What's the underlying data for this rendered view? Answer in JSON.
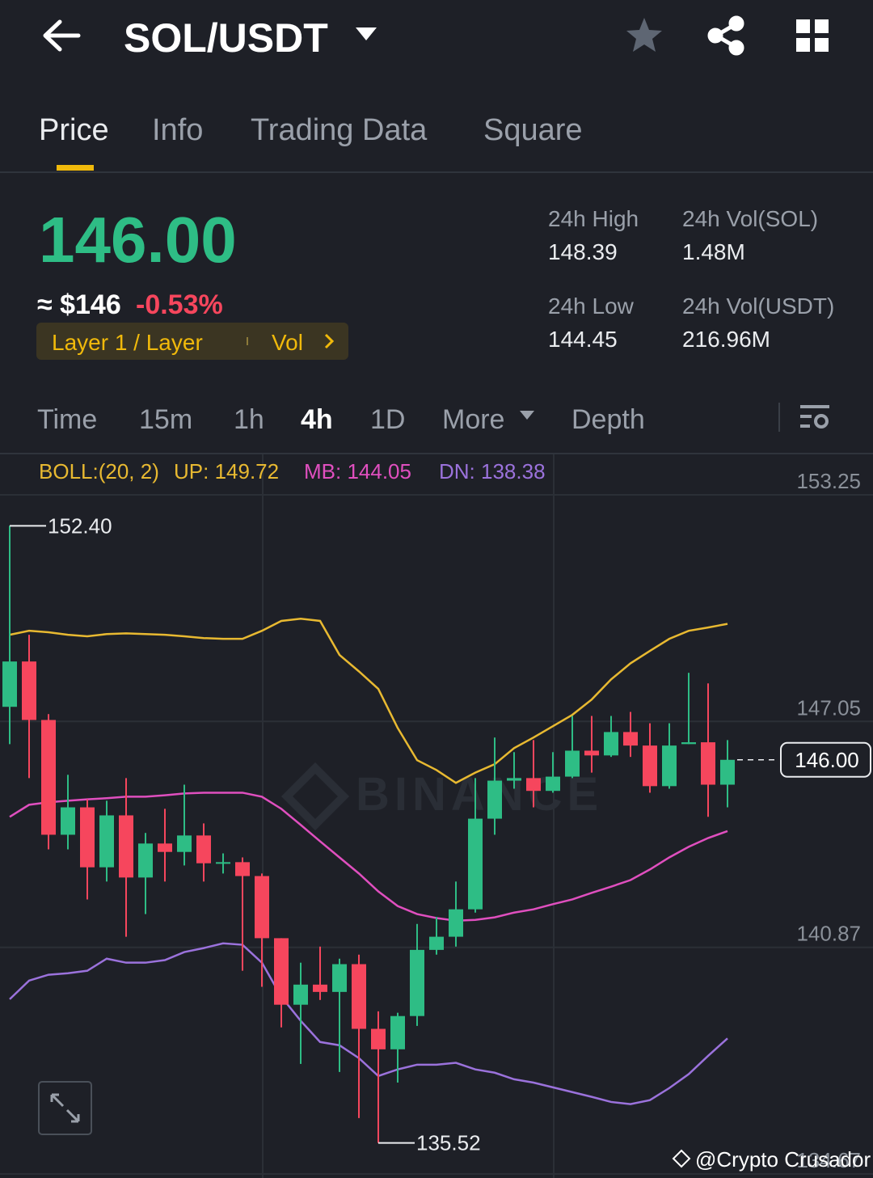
{
  "header": {
    "pair": "SOL/USDT"
  },
  "tabs": [
    "Price",
    "Info",
    "Trading Data",
    "Square"
  ],
  "price": {
    "last": "146.00",
    "fiat": "≈ $146",
    "change": "-0.53%",
    "tag": "Layer 1 / Layer",
    "tag_more": "Vol"
  },
  "stats": [
    {
      "label": "24h High",
      "value": "148.39"
    },
    {
      "label": "24h Vol(SOL)",
      "value": "1.48M"
    },
    {
      "label": "24h Low",
      "value": "144.45"
    },
    {
      "label": "24h Vol(USDT)",
      "value": "216.96M"
    }
  ],
  "intervals": [
    "Time",
    "15m",
    "1h",
    "4h",
    "1D",
    "More",
    "Depth"
  ],
  "chart_data": {
    "type": "candlestick",
    "indicator": "BOLL:(20, 2)",
    "up_color": "#2ebd85",
    "down_color": "#f6465d",
    "open": [
      147.45,
      148.69,
      147.09,
      143.95,
      144.7,
      143.06,
      144.48,
      142.78,
      143.71,
      143.48,
      143.93,
      143.17,
      143.2,
      142.82,
      141.12,
      139.3,
      139.85,
      139.65,
      140.41,
      138.64,
      138.08,
      138.99,
      140.8,
      141.16,
      141.91,
      144.39,
      145.43,
      145.5,
      145.15,
      145.54,
      146.25,
      146.12,
      146.76,
      146.39,
      145.28,
      146.43,
      146.48,
      145.32
    ],
    "high": [
      152.4,
      149.42,
      147.25,
      145.59,
      144.92,
      144.88,
      145.5,
      144.0,
      144.66,
      145.32,
      144.26,
      143.44,
      143.33,
      142.89,
      141.12,
      140.45,
      140.89,
      140.56,
      140.67,
      139.12,
      139.08,
      141.51,
      141.7,
      142.67,
      145.5,
      146.61,
      146.21,
      146.54,
      146.21,
      147.2,
      147.2,
      147.2,
      147.31,
      147.0,
      147.0,
      148.38,
      148.09,
      146.54
    ],
    "low": [
      146.43,
      145.5,
      143.55,
      143.55,
      142.18,
      142.67,
      141.16,
      141.78,
      142.67,
      143.11,
      142.67,
      142.89,
      140.23,
      139.79,
      138.68,
      137.68,
      139.43,
      137.46,
      136.2,
      135.52,
      137.17,
      138.72,
      140.67,
      140.89,
      141.82,
      143.95,
      145.21,
      144.7,
      145.1,
      145.5,
      145.65,
      146.08,
      146.08,
      145.1,
      145.21,
      146.43,
      144.44,
      144.7
    ],
    "close": [
      148.69,
      147.09,
      143.95,
      144.7,
      143.06,
      144.48,
      142.78,
      143.71,
      143.48,
      143.93,
      143.17,
      143.2,
      142.82,
      141.12,
      139.3,
      139.85,
      139.65,
      140.41,
      138.64,
      138.08,
      138.99,
      140.8,
      141.16,
      141.91,
      144.39,
      145.43,
      145.5,
      145.15,
      145.54,
      146.25,
      146.12,
      146.76,
      146.39,
      145.28,
      146.39,
      146.48,
      145.32,
      146.0
    ],
    "series": [
      {
        "name": "UP: 149.72",
        "color": "#e8b931",
        "values": [
          149.42,
          149.53,
          149.49,
          149.42,
          149.38,
          149.44,
          149.46,
          149.44,
          149.42,
          149.38,
          149.33,
          149.31,
          149.31,
          149.53,
          149.8,
          149.86,
          149.8,
          148.87,
          148.42,
          147.94,
          146.87,
          145.99,
          145.72,
          145.37,
          145.65,
          145.88,
          146.32,
          146.61,
          146.92,
          147.23,
          147.65,
          148.2,
          148.64,
          148.98,
          149.31,
          149.53,
          149.62,
          149.72
        ]
      },
      {
        "name": "MB: 144.05",
        "color": "#e04fbf",
        "values": [
          144.44,
          144.77,
          144.84,
          144.88,
          144.92,
          144.95,
          144.99,
          144.99,
          145.03,
          145.08,
          145.1,
          145.1,
          145.1,
          144.99,
          144.66,
          144.22,
          143.77,
          143.33,
          142.89,
          142.4,
          142.0,
          141.78,
          141.67,
          141.6,
          141.62,
          141.69,
          141.82,
          141.91,
          142.05,
          142.18,
          142.36,
          142.53,
          142.71,
          143.0,
          143.33,
          143.62,
          143.86,
          144.05
        ]
      },
      {
        "name": "DN: 138.38",
        "color": "#9b72dc",
        "values": [
          139.45,
          139.96,
          140.12,
          140.16,
          140.23,
          140.56,
          140.45,
          140.45,
          140.52,
          140.74,
          140.85,
          140.98,
          140.94,
          140.45,
          139.52,
          138.86,
          138.28,
          138.19,
          137.84,
          137.35,
          137.53,
          137.66,
          137.66,
          137.71,
          137.53,
          137.44,
          137.26,
          137.17,
          137.04,
          136.91,
          136.78,
          136.64,
          136.58,
          136.69,
          137.02,
          137.4,
          137.9,
          138.38
        ]
      }
    ],
    "ylim": [
      134.67,
      153.25
    ],
    "yticks": [
      153.25,
      147.05,
      140.87,
      134.67
    ],
    "grid": true,
    "high_label": "152.40",
    "low_label": "135.52",
    "last_price": {
      "value": 146,
      "label": "146.00"
    },
    "watermark": "BINANCE"
  },
  "credit": "@Crypto Crusador"
}
